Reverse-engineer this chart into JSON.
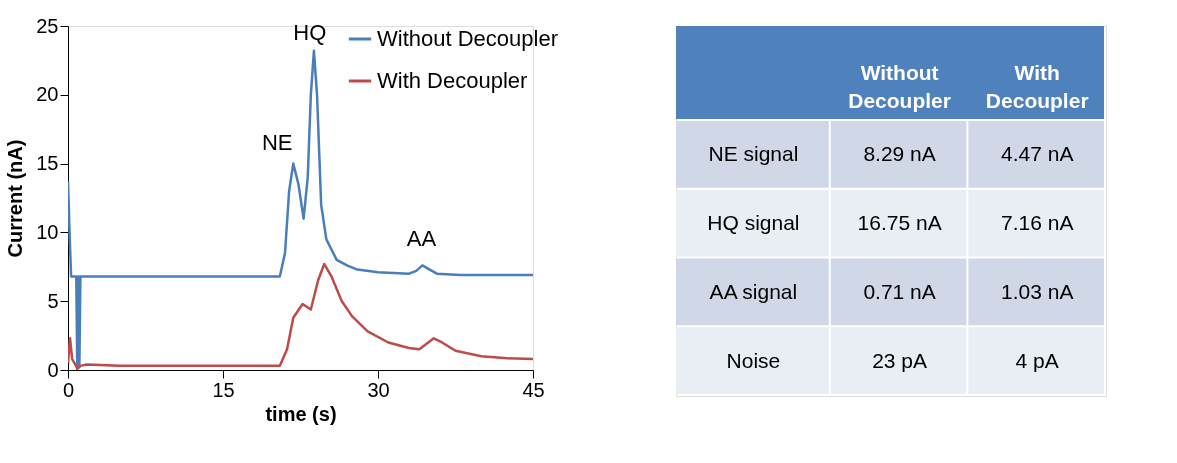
{
  "chart_data": [
    {
      "type": "line",
      "xlabel": "time (s)",
      "ylabel": "Current (nA)",
      "xlim": [
        0,
        45
      ],
      "xticks": [
        0,
        15,
        30,
        45
      ],
      "ylim": [
        0,
        25
      ],
      "yticks": [
        0,
        5,
        10,
        15,
        20,
        25
      ],
      "grid": false,
      "legend": "top right",
      "marker": "none",
      "line_style": "solid",
      "series": [
        {
          "name": "Without Decoupler",
          "color": "#4a7ebb",
          "x": [
            0,
            0.15,
            0.3,
            0.8,
            0.9,
            1.0,
            1.1,
            1.2,
            3,
            8,
            15,
            20.5,
            21.0,
            21.4,
            21.8,
            22.3,
            22.8,
            23.2,
            23.5,
            23.8,
            24.1,
            24.5,
            25,
            26,
            27,
            28,
            30,
            33,
            33.7,
            34.3,
            35,
            35.7,
            38,
            41,
            45
          ],
          "values": [
            13.7,
            10,
            6.8,
            6.8,
            0,
            6.8,
            0.2,
            6.8,
            6.8,
            6.8,
            6.8,
            6.8,
            8.5,
            13,
            15.0,
            13.5,
            11.0,
            14,
            20,
            23.2,
            20,
            12,
            9.5,
            8.0,
            7.6,
            7.3,
            7.1,
            7.0,
            7.2,
            7.6,
            7.3,
            7.0,
            6.9,
            6.9,
            6.9
          ]
        },
        {
          "name": "With Decoupler",
          "color": "#be4b48",
          "x": [
            0,
            0.2,
            0.4,
            0.7,
            0.9,
            1.2,
            1.8,
            5,
            10,
            15,
            20.5,
            21.2,
            21.8,
            22.7,
            23.5,
            24.2,
            24.8,
            25.5,
            26.5,
            27.5,
            29,
            31,
            33,
            34,
            34.7,
            35.4,
            36.2,
            37.5,
            40,
            42.5,
            45
          ],
          "values": [
            0.5,
            2.3,
            0.8,
            0.4,
            0.1,
            0.3,
            0.4,
            0.3,
            0.3,
            0.3,
            0.3,
            1.5,
            3.8,
            4.8,
            4.4,
            6.5,
            7.7,
            6.8,
            5.0,
            3.9,
            2.8,
            2.0,
            1.6,
            1.5,
            1.9,
            2.3,
            2.0,
            1.4,
            1.0,
            0.85,
            0.8
          ]
        }
      ],
      "annotations": [
        "NE",
        "HQ",
        "AA"
      ]
    },
    {
      "type": "other",
      "annotations": [
        "Without Decoupler",
        "With Decoupler",
        "NE signal",
        "8.29 nA",
        "4.47 nA",
        "HQ signal",
        "16.75 nA",
        "7.16 nA",
        "AA signal",
        "0.71 nA",
        "1.03 nA",
        "Noise",
        "23 pA",
        "4 pA"
      ]
    }
  ]
}
